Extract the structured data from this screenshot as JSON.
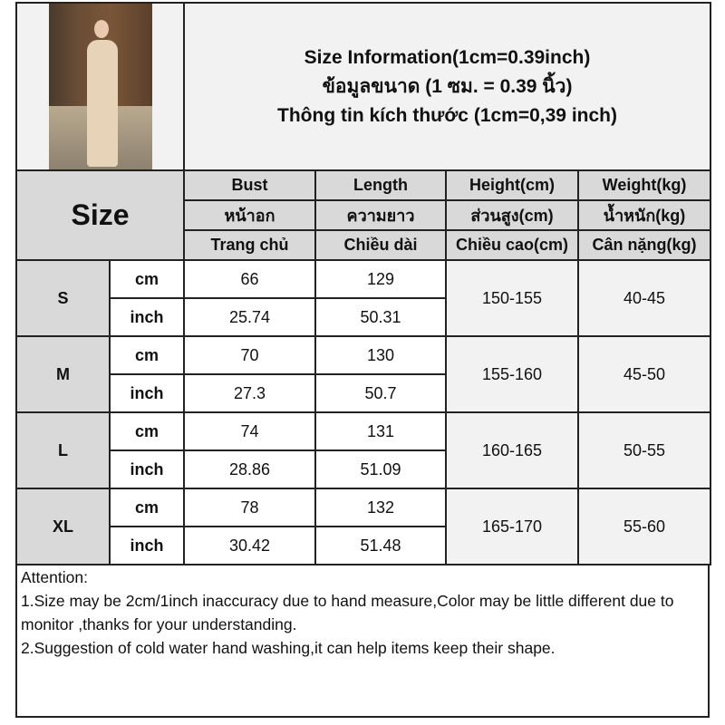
{
  "title_lines": [
    "Size Information(1cm=0.39inch)",
    "ข้อมูลขนาด (1 ซม. = 0.39 นิ้ว)",
    "Thông tin kích thước (1cm=0,39 inch)"
  ],
  "size_label": "Size",
  "headers": [
    [
      "Bust",
      "หน้าอก",
      "Trang chủ"
    ],
    [
      "Length",
      "ความยาว",
      "Chiều dài"
    ],
    [
      "Height(cm)",
      "ส่วนสูง(cm)",
      "Chiều cao(cm)"
    ],
    [
      "Weight(kg)",
      "น้ำหนัก(kg)",
      "Cân nặng(kg)"
    ]
  ],
  "units": {
    "cm": "cm",
    "inch": "inch"
  },
  "rows": [
    {
      "size": "S",
      "cm": [
        "66",
        "129"
      ],
      "inch": [
        "25.74",
        "50.31"
      ],
      "height": "150-155",
      "weight": "40-45"
    },
    {
      "size": "M",
      "cm": [
        "70",
        "130"
      ],
      "inch": [
        "27.3",
        "50.7"
      ],
      "height": "155-160",
      "weight": "45-50"
    },
    {
      "size": "L",
      "cm": [
        "74",
        "131"
      ],
      "inch": [
        "28.86",
        "51.09"
      ],
      "height": "160-165",
      "weight": "50-55"
    },
    {
      "size": "XL",
      "cm": [
        "78",
        "132"
      ],
      "inch": [
        "30.42",
        "51.48"
      ],
      "height": "165-170",
      "weight": "55-60"
    }
  ],
  "attention": {
    "heading": "Attention:",
    "line1": "1.Size may be 2cm/1inch inaccuracy due to hand measure,Color may be little different due to monitor ,thanks for your understanding.",
    "line2": "2.Suggestion of cold water hand washing,it can help items keep their shape."
  }
}
